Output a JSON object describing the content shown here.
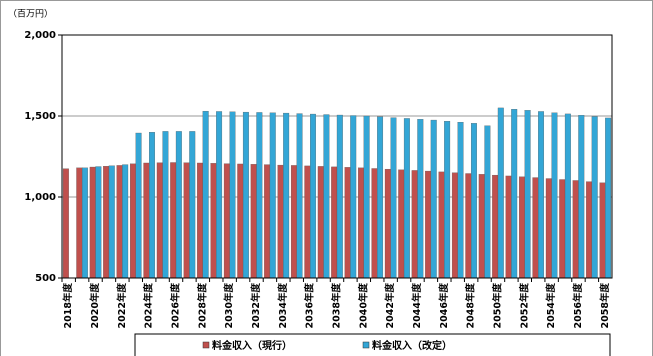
{
  "chart_data": {
    "type": "bar",
    "unit_label": "（百万円）",
    "categories": [
      "2018年度",
      null,
      "2020年度",
      null,
      "2022年度",
      null,
      "2024年度",
      null,
      "2026年度",
      null,
      "2028年度",
      null,
      "2030年度",
      null,
      "2032年度",
      null,
      "2034年度",
      null,
      "2036年度",
      null,
      "2038年度",
      null,
      "2040年度",
      null,
      "2042年度",
      null,
      "2044年度",
      null,
      "2046年度",
      null,
      "2048年度",
      null,
      "2050年度",
      null,
      "2052年度",
      null,
      "2054年度",
      null,
      "2056年度",
      null,
      "2058年度"
    ],
    "series": [
      {
        "name": "料金収入（現行）",
        "color": "#c0504d",
        "values": [
          1175,
          1180,
          1185,
          1190,
          1195,
          1205,
          1210,
          1212,
          1213,
          1212,
          1210,
          1208,
          1206,
          1204,
          1202,
          1200,
          1197,
          1195,
          1192,
          1189,
          1186,
          1183,
          1180,
          1176,
          1172,
          1168,
          1164,
          1160,
          1155,
          1150,
          1145,
          1140,
          1135,
          1130,
          1125,
          1120,
          1114,
          1108,
          1102,
          1095,
          1088
        ]
      },
      {
        "name": "料金収入（改定）",
        "color": "#33a6d6",
        "values": [
          null,
          1180,
          1188,
          1193,
          1200,
          1395,
          1400,
          1405,
          1405,
          1405,
          1530,
          1528,
          1526,
          1524,
          1522,
          1520,
          1518,
          1515,
          1512,
          1509,
          1506,
          1503,
          1500,
          1496,
          1490,
          1485,
          1480,
          1475,
          1468,
          1462,
          1455,
          1440,
          1550,
          1542,
          1535,
          1528,
          1520,
          1513,
          1505,
          1497,
          1488
        ]
      }
    ],
    "ylim": [
      500,
      2000
    ],
    "yticks": [
      500,
      {
        "value": 1000,
        "label": "1,000"
      },
      {
        "value": 1500,
        "label": "1,500"
      },
      {
        "value": 2000,
        "label": "2,000"
      }
    ],
    "grid": true
  }
}
